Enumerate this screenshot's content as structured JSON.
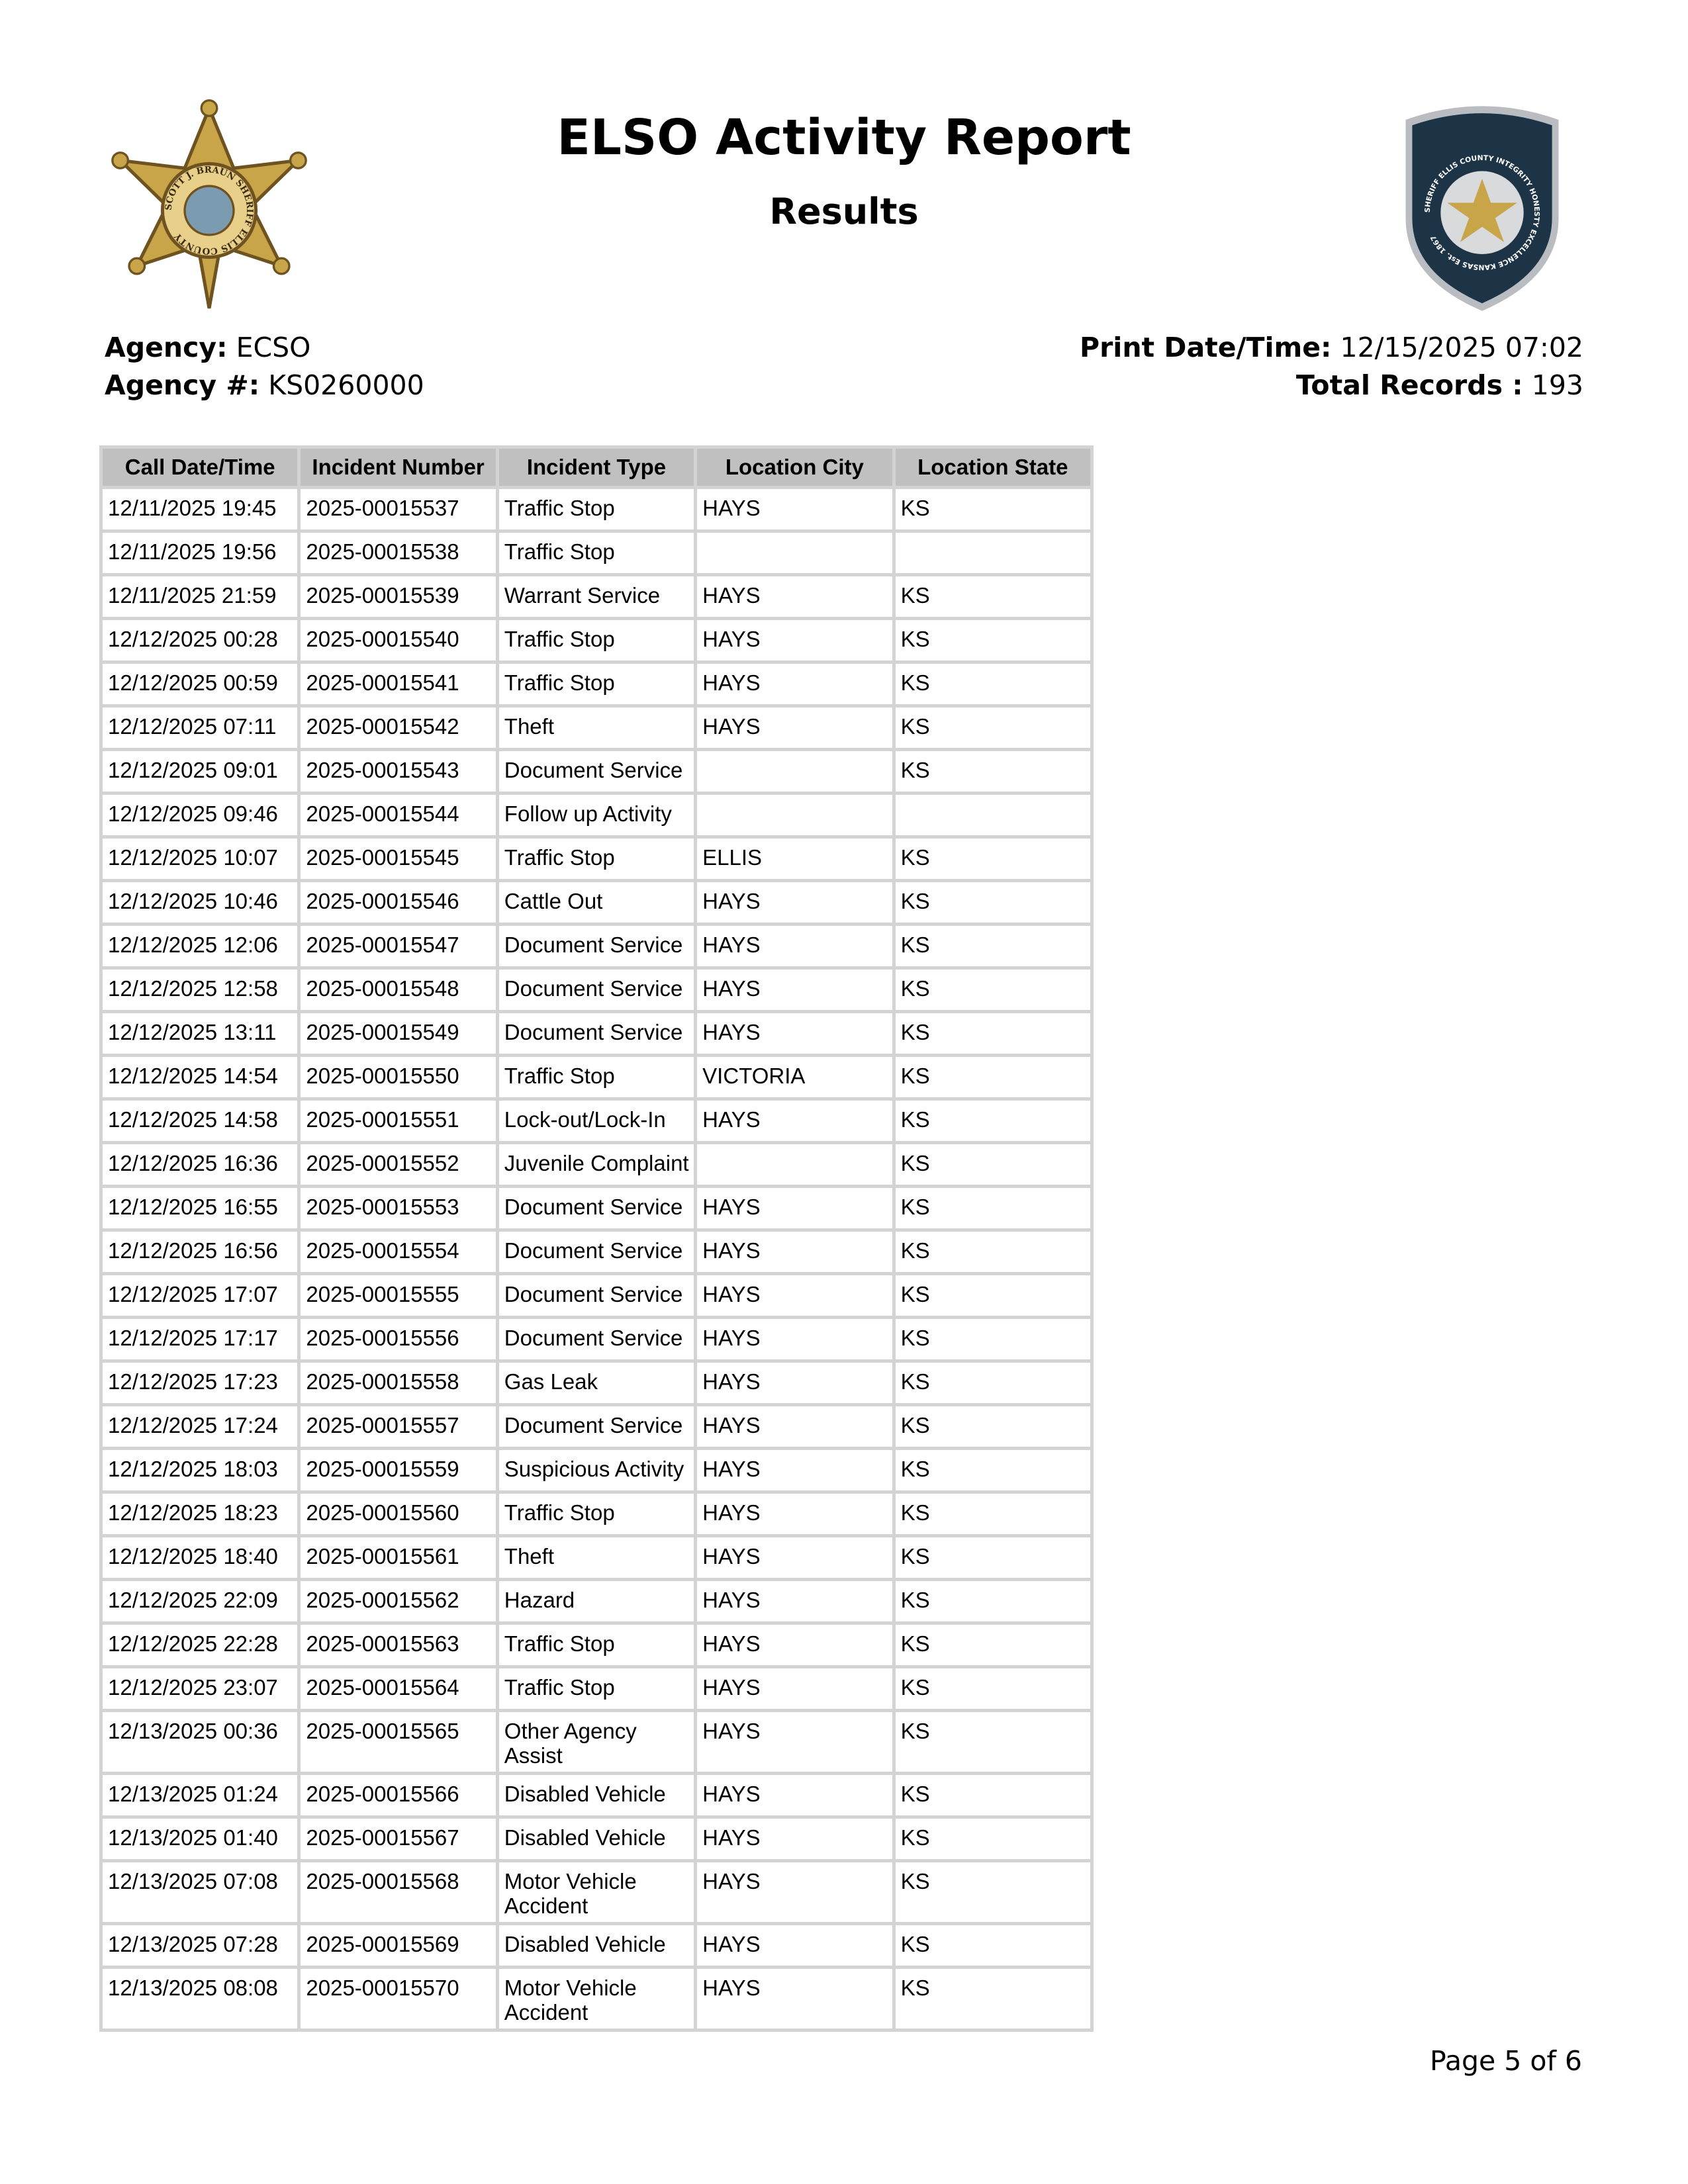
{
  "header": {
    "title": "ELSO Activity Report",
    "subtitle": "Results",
    "left_logo_text": "SCOTT J. BRAUN SHERIFF ELLIS COUNTY",
    "right_logo_text": "SHERIFF ELLIS COUNTY INTEGRITY HONESTY EXCELLENCE KANSAS Est. 1867"
  },
  "meta": {
    "agency_label": "Agency:",
    "agency_value": "ECSO",
    "agency_num_label": "Agency #:",
    "agency_num_value": "KS0260000",
    "print_label": "Print Date/Time:",
    "print_value": "12/15/2025 07:02",
    "total_label": "Total Records :",
    "total_value": "193"
  },
  "table": {
    "columns": [
      "Call Date/Time",
      "Incident Number",
      "Incident Type",
      "Location City",
      "Location State"
    ],
    "rows": [
      [
        "12/11/2025 19:45",
        "2025-00015537",
        "Traffic Stop",
        "HAYS",
        "KS"
      ],
      [
        "12/11/2025 19:56",
        "2025-00015538",
        "Traffic Stop",
        "",
        ""
      ],
      [
        "12/11/2025 21:59",
        "2025-00015539",
        "Warrant Service",
        "HAYS",
        "KS"
      ],
      [
        "12/12/2025 00:28",
        "2025-00015540",
        "Traffic Stop",
        "HAYS",
        "KS"
      ],
      [
        "12/12/2025 00:59",
        "2025-00015541",
        "Traffic Stop",
        "HAYS",
        "KS"
      ],
      [
        "12/12/2025 07:11",
        "2025-00015542",
        "Theft",
        "HAYS",
        "KS"
      ],
      [
        "12/12/2025 09:01",
        "2025-00015543",
        "Document Service",
        "",
        "KS"
      ],
      [
        "12/12/2025 09:46",
        "2025-00015544",
        "Follow up Activity",
        "",
        ""
      ],
      [
        "12/12/2025 10:07",
        "2025-00015545",
        "Traffic Stop",
        "ELLIS",
        "KS"
      ],
      [
        "12/12/2025 10:46",
        "2025-00015546",
        "Cattle Out",
        "HAYS",
        "KS"
      ],
      [
        "12/12/2025 12:06",
        "2025-00015547",
        "Document Service",
        "HAYS",
        "KS"
      ],
      [
        "12/12/2025 12:58",
        "2025-00015548",
        "Document Service",
        "HAYS",
        "KS"
      ],
      [
        "12/12/2025 13:11",
        "2025-00015549",
        "Document Service",
        "HAYS",
        "KS"
      ],
      [
        "12/12/2025 14:54",
        "2025-00015550",
        "Traffic Stop",
        "VICTORIA",
        "KS"
      ],
      [
        "12/12/2025 14:58",
        "2025-00015551",
        "Lock-out/Lock-In",
        "HAYS",
        "KS"
      ],
      [
        "12/12/2025 16:36",
        "2025-00015552",
        "Juvenile Complaint",
        "",
        "KS"
      ],
      [
        "12/12/2025 16:55",
        "2025-00015553",
        "Document Service",
        "HAYS",
        "KS"
      ],
      [
        "12/12/2025 16:56",
        "2025-00015554",
        "Document Service",
        "HAYS",
        "KS"
      ],
      [
        "12/12/2025 17:07",
        "2025-00015555",
        "Document Service",
        "HAYS",
        "KS"
      ],
      [
        "12/12/2025 17:17",
        "2025-00015556",
        "Document Service",
        "HAYS",
        "KS"
      ],
      [
        "12/12/2025 17:23",
        "2025-00015558",
        "Gas Leak",
        "HAYS",
        "KS"
      ],
      [
        "12/12/2025 17:24",
        "2025-00015557",
        "Document Service",
        "HAYS",
        "KS"
      ],
      [
        "12/12/2025 18:03",
        "2025-00015559",
        "Suspicious Activity",
        "HAYS",
        "KS"
      ],
      [
        "12/12/2025 18:23",
        "2025-00015560",
        "Traffic Stop",
        "HAYS",
        "KS"
      ],
      [
        "12/12/2025 18:40",
        "2025-00015561",
        "Theft",
        "HAYS",
        "KS"
      ],
      [
        "12/12/2025 22:09",
        "2025-00015562",
        "Hazard",
        "HAYS",
        "KS"
      ],
      [
        "12/12/2025 22:28",
        "2025-00015563",
        "Traffic Stop",
        "HAYS",
        "KS"
      ],
      [
        "12/12/2025 23:07",
        "2025-00015564",
        "Traffic Stop",
        "HAYS",
        "KS"
      ],
      [
        "12/13/2025 00:36",
        "2025-00015565",
        "Other Agency Assist",
        "HAYS",
        "KS"
      ],
      [
        "12/13/2025 01:24",
        "2025-00015566",
        "Disabled Vehicle",
        "HAYS",
        "KS"
      ],
      [
        "12/13/2025 01:40",
        "2025-00015567",
        "Disabled Vehicle",
        "HAYS",
        "KS"
      ],
      [
        "12/13/2025 07:08",
        "2025-00015568",
        "Motor Vehicle Accident",
        "HAYS",
        "KS"
      ],
      [
        "12/13/2025 07:28",
        "2025-00015569",
        "Disabled Vehicle",
        "HAYS",
        "KS"
      ],
      [
        "12/13/2025 08:08",
        "2025-00015570",
        "Motor Vehicle Accident",
        "HAYS",
        "KS"
      ]
    ]
  },
  "footer": {
    "page": "Page 5 of 6"
  },
  "colors": {
    "header_bg": "#c0c0c0",
    "grid": "#d3d3d3",
    "badge_gold": "#c9a54a",
    "shield_navy": "#1d3447"
  }
}
